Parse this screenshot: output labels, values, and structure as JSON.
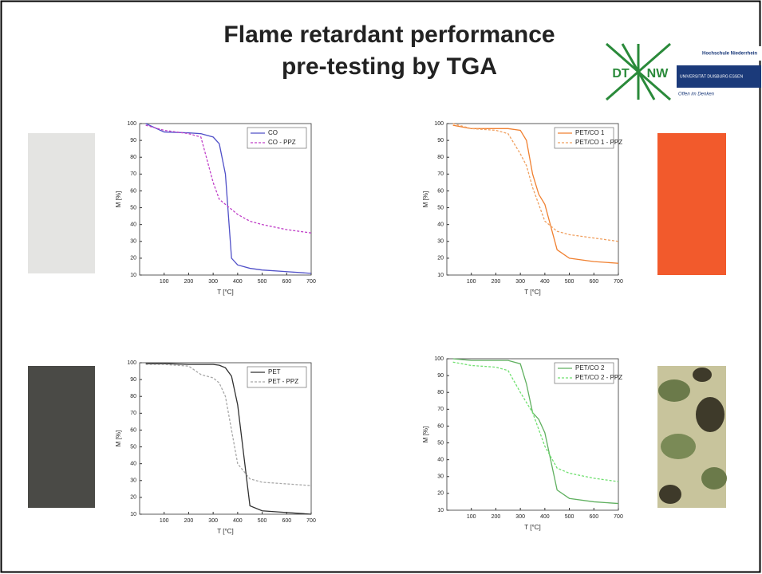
{
  "title": [
    "Flame retardant performance",
    "pre-testing by TGA"
  ],
  "logo": {
    "left": "DT",
    "right": "NW",
    "school": "Hochschule Niederrhein",
    "university": "UNIVERSITÄT DUISBURG ESSEN",
    "motto": "Offen im Denken"
  },
  "chart_data": [
    {
      "type": "line",
      "xlabel": "T [°C]",
      "ylabel": "M [%]",
      "xlim": [
        0,
        700
      ],
      "ylim": [
        10,
        100
      ],
      "xticks": [
        100,
        200,
        300,
        400,
        500,
        600,
        700
      ],
      "yticks": [
        10,
        20,
        30,
        40,
        50,
        60,
        70,
        80,
        90,
        100
      ],
      "legend": "upper right",
      "x": [
        25,
        100,
        200,
        250,
        300,
        325,
        350,
        375,
        400,
        450,
        500,
        600,
        700
      ],
      "series": [
        {
          "name": "CO",
          "color": "#5050c8",
          "style": "solid",
          "values": [
            100,
            95,
            94.5,
            94,
            92,
            88,
            70,
            20,
            16,
            14,
            13,
            12,
            11
          ]
        },
        {
          "name": "CO - PPZ",
          "color": "#c040c8",
          "style": "dashed",
          "values": [
            99,
            96,
            94,
            92,
            65,
            55,
            52,
            49,
            46,
            42,
            40,
            37,
            35
          ]
        }
      ]
    },
    {
      "type": "line",
      "xlabel": "T [°C]",
      "ylabel": "M [%]",
      "xlim": [
        0,
        700
      ],
      "ylim": [
        10,
        100
      ],
      "xticks": [
        100,
        200,
        300,
        400,
        500,
        600,
        700
      ],
      "yticks": [
        10,
        20,
        30,
        40,
        50,
        60,
        70,
        80,
        90,
        100
      ],
      "legend": "upper right",
      "x": [
        25,
        100,
        200,
        250,
        300,
        325,
        350,
        375,
        400,
        450,
        500,
        600,
        700
      ],
      "series": [
        {
          "name": "PET/CO 1",
          "color": "#f08030",
          "style": "solid",
          "values": [
            99,
            97,
            97,
            97,
            96,
            90,
            70,
            58,
            52,
            25,
            20,
            18,
            17
          ]
        },
        {
          "name": "PET/CO 1 - PPZ",
          "color": "#f0a060",
          "style": "dashed",
          "values": [
            100,
            97,
            96,
            94,
            82,
            75,
            62,
            52,
            42,
            36,
            34,
            32,
            30
          ]
        }
      ]
    },
    {
      "type": "line",
      "xlabel": "T [°C]",
      "ylabel": "M [%]",
      "xlim": [
        0,
        700
      ],
      "ylim": [
        10,
        100
      ],
      "xticks": [
        100,
        200,
        300,
        400,
        500,
        600,
        700
      ],
      "yticks": [
        10,
        20,
        30,
        40,
        50,
        60,
        70,
        80,
        90,
        100
      ],
      "legend": "upper right",
      "x": [
        25,
        100,
        200,
        250,
        300,
        325,
        350,
        375,
        400,
        450,
        500,
        600,
        700
      ],
      "series": [
        {
          "name": "PET",
          "color": "#303030",
          "style": "solid",
          "values": [
            99.5,
            99.5,
            99,
            99,
            99,
            98.5,
            97,
            92,
            75,
            15,
            12,
            11,
            10
          ]
        },
        {
          "name": "PET - PPZ",
          "color": "#a8a8a8",
          "style": "dashed",
          "values": [
            99,
            99,
            98,
            93,
            91,
            88,
            80,
            60,
            40,
            31,
            29,
            28,
            27
          ]
        }
      ]
    },
    {
      "type": "line",
      "xlabel": "T [°C]",
      "ylabel": "M [%]",
      "xlim": [
        0,
        700
      ],
      "ylim": [
        10,
        100
      ],
      "xticks": [
        100,
        200,
        300,
        400,
        500,
        600,
        700
      ],
      "yticks": [
        10,
        20,
        30,
        40,
        50,
        60,
        70,
        80,
        90,
        100
      ],
      "legend": "upper right",
      "x": [
        25,
        100,
        200,
        250,
        300,
        325,
        350,
        375,
        400,
        450,
        500,
        600,
        700
      ],
      "series": [
        {
          "name": "PET/CO 2",
          "color": "#60b060",
          "style": "solid",
          "values": [
            100,
            99,
            99,
            99,
            97,
            85,
            68,
            64,
            56,
            22,
            17,
            15,
            14
          ]
        },
        {
          "name": "PET/CO 2 - PPZ",
          "color": "#70e070",
          "style": "dashed",
          "values": [
            98,
            96,
            95,
            93,
            80,
            74,
            68,
            58,
            48,
            35,
            32,
            29,
            27
          ]
        }
      ]
    }
  ]
}
